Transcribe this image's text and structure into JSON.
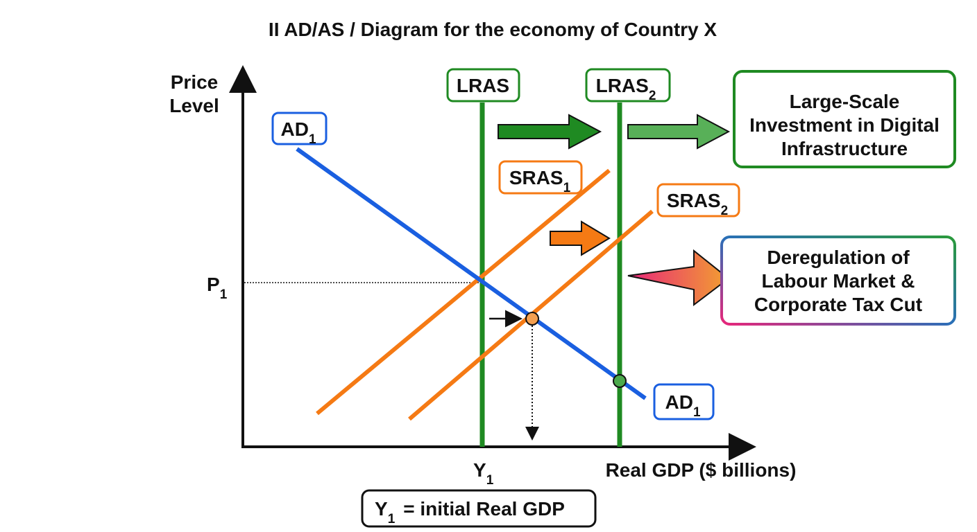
{
  "title": "II AD/AS / Diagram for the economy of Country X",
  "axes": {
    "y_label": [
      "Price",
      "Level"
    ],
    "x_label": "Real GDP ($ billions)",
    "p_label": {
      "main": "P",
      "sub": "1"
    },
    "y_tick": {
      "main": "Y",
      "sub": "1"
    }
  },
  "curves": {
    "lras1": {
      "main": "LRAS"
    },
    "lras2": {
      "main": "LRAS",
      "sub": "2"
    },
    "sras1": {
      "main": "SRAS",
      "sub": "1"
    },
    "sras2": {
      "main": "SRAS",
      "sub": "2"
    },
    "ad_top": {
      "main": "AD",
      "sub": "1"
    },
    "ad_bottom": {
      "main": "AD",
      "sub": "1"
    }
  },
  "boxes": {
    "investment": [
      "Large-Scale",
      "Investment in Digital",
      "Infrastructure"
    ],
    "deregulation": [
      "Deregulation of",
      "Labour Market &",
      "Corporate Tax Cut"
    ]
  },
  "note": {
    "main": "Y",
    "sub": "1",
    "rest": "=  initial Real GDP"
  }
}
